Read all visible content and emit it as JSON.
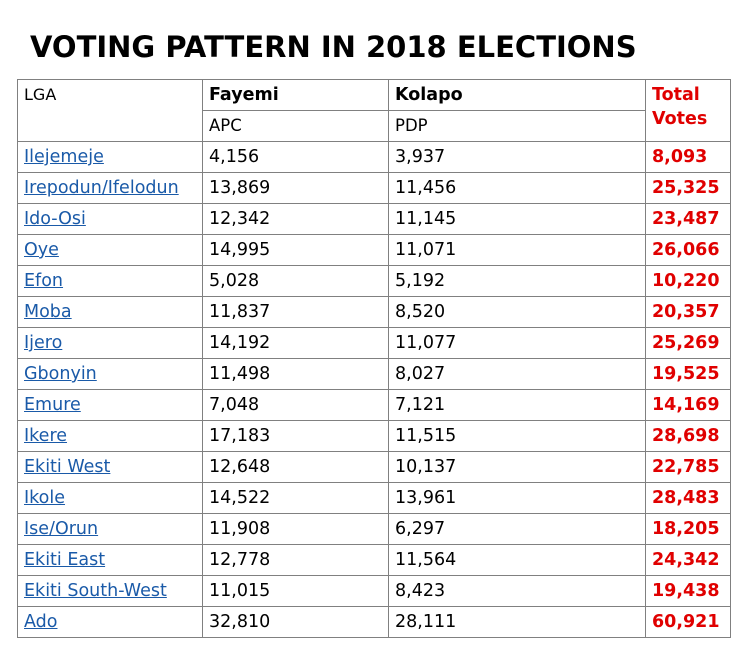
{
  "title": "VOTING PATTERN IN 2018 ELECTIONS",
  "colors": {
    "total": "#e00000",
    "link": "#1a5aa8",
    "border": "#808080"
  },
  "header": {
    "lga": "LGA",
    "candidate1": "Fayemi",
    "party1": "APC",
    "candidate2": "Kolapo",
    "party2": "PDP",
    "total": "Total Votes"
  },
  "rows": [
    {
      "lga": "Ilejemeje",
      "apc": "4,156",
      "pdp": "3,937",
      "total": "8,093"
    },
    {
      "lga": "Irepodun/Ifelodun",
      "apc": "13,869",
      "pdp": "11,456",
      "total": "25,325"
    },
    {
      "lga": "Ido-Osi",
      "apc": "12,342",
      "pdp": "11,145",
      "total": "23,487"
    },
    {
      "lga": "Oye",
      "apc": "14,995",
      "pdp": "11,071",
      "total": "26,066"
    },
    {
      "lga": "Efon",
      "apc": "5,028",
      "pdp": "5,192",
      "total": "10,220"
    },
    {
      "lga": "Moba",
      "apc": "11,837",
      "pdp": "8,520",
      "total": "20,357"
    },
    {
      "lga": "Ijero",
      "apc": "14,192",
      "pdp": "11,077",
      "total": "25,269"
    },
    {
      "lga": "Gbonyin",
      "apc": "11,498",
      "pdp": "8,027",
      "total": "19,525"
    },
    {
      "lga": "Emure",
      "apc": "7,048",
      "pdp": "7,121",
      "total": "14,169"
    },
    {
      "lga": "Ikere",
      "apc": "17,183",
      "pdp": "11,515",
      "total": "28,698"
    },
    {
      "lga": "Ekiti West",
      "apc": "12,648",
      "pdp": "10,137",
      "total": "22,785"
    },
    {
      "lga": "Ikole",
      "apc": "14,522",
      "pdp": "13,961",
      "total": "28,483"
    },
    {
      "lga": "Ise/Orun",
      "apc": "11,908",
      "pdp": "6,297",
      "total": "18,205"
    },
    {
      "lga": "Ekiti East",
      "apc": "12,778",
      "pdp": "11,564",
      "total": "24,342"
    },
    {
      "lga": "Ekiti South-West",
      "apc": "11,015",
      "pdp": "8,423",
      "total": "19,438"
    },
    {
      "lga": "Ado",
      "apc": "32,810",
      "pdp": "28,111",
      "total": "60,921"
    }
  ]
}
